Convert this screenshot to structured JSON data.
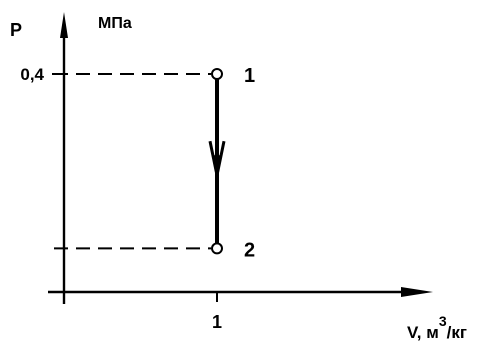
{
  "chart_data": {
    "type": "line",
    "title": "",
    "ylabel": "P",
    "yunit": "МПа",
    "xlabel": "V, м³/кг",
    "xlabel_parts": {
      "main": "V, м",
      "sup": "3",
      "tail": "/кг"
    },
    "xlim": [
      0,
      1.4
    ],
    "ylim": [
      0,
      0.62
    ],
    "x_ticks": [
      {
        "value": 1,
        "label": "1"
      }
    ],
    "y_ticks": [
      {
        "value": 0.4,
        "label": "0,4"
      }
    ],
    "points": [
      {
        "name": "1",
        "x": 1,
        "y": 0.4
      },
      {
        "name": "2",
        "x": 1,
        "y": 0.08
      }
    ],
    "process": {
      "from": "1",
      "to": "2",
      "direction": "down"
    },
    "grid": false,
    "legend": "none"
  }
}
